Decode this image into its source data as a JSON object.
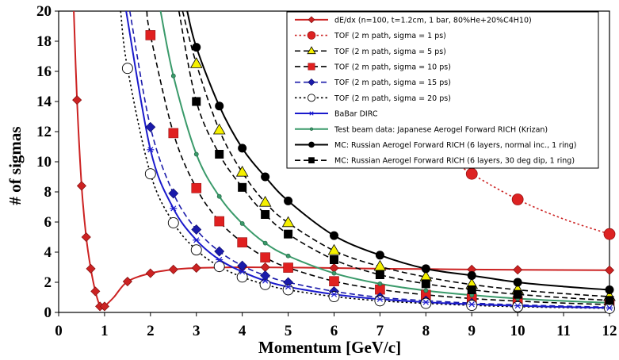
{
  "chart_data": {
    "type": "line",
    "xlabel": "Momentum [GeV/c]",
    "ylabel": "# of sigmas",
    "xlim": [
      0,
      12
    ],
    "ylim": [
      0,
      20
    ],
    "x_ticks": [
      "0",
      "1",
      "2",
      "3",
      "4",
      "5",
      "6",
      "7",
      "8",
      "9",
      "10",
      "11",
      "12"
    ],
    "y_ticks": [
      "0",
      "2",
      "4",
      "6",
      "8",
      "10",
      "12",
      "14",
      "16",
      "18",
      "20"
    ],
    "grid": true,
    "legend_position": "top-right",
    "series": [
      {
        "name": "dE/dx (n=100, t=1.2cm, 1 bar, 80%He+20%C4H10)",
        "color": "#cc2222",
        "line": "solid",
        "marker": "diamond-filled",
        "points": [
          [
            0.4,
            14.1
          ],
          [
            0.5,
            8.4
          ],
          [
            0.6,
            5.0
          ],
          [
            0.7,
            2.9
          ],
          [
            0.8,
            1.4
          ],
          [
            0.9,
            0.4
          ],
          [
            1.0,
            0.4
          ],
          [
            1.5,
            2.05
          ],
          [
            2.0,
            2.6
          ],
          [
            2.5,
            2.85
          ],
          [
            3.0,
            2.95
          ],
          [
            3.5,
            2.98
          ],
          [
            4.0,
            3.0
          ],
          [
            4.5,
            3.0
          ],
          [
            5.0,
            2.98
          ],
          [
            6.0,
            2.95
          ],
          [
            7.0,
            2.9
          ],
          [
            8.0,
            2.88
          ],
          [
            9.0,
            2.85
          ],
          [
            10.0,
            2.83
          ],
          [
            12.0,
            2.8
          ]
        ],
        "curve": [
          [
            0.33,
            20
          ],
          [
            0.4,
            14.1
          ],
          [
            0.5,
            8.4
          ],
          [
            0.6,
            5.0
          ],
          [
            0.7,
            2.9
          ],
          [
            0.8,
            1.4
          ],
          [
            0.9,
            0.4
          ],
          [
            0.95,
            0.25
          ],
          [
            1.0,
            0.4
          ],
          [
            1.2,
            1.0
          ],
          [
            1.5,
            2.05
          ],
          [
            2.0,
            2.6
          ],
          [
            2.5,
            2.85
          ],
          [
            3.0,
            2.95
          ],
          [
            3.5,
            2.98
          ],
          [
            4.0,
            3.0
          ],
          [
            5.0,
            2.98
          ],
          [
            6.0,
            2.95
          ],
          [
            7.0,
            2.9
          ],
          [
            8.0,
            2.88
          ],
          [
            9.0,
            2.85
          ],
          [
            10.0,
            2.83
          ],
          [
            12.0,
            2.8
          ]
        ]
      },
      {
        "name": "TOF (2 m path, sigma = 1 ps)",
        "color": "#cc2222",
        "line": "dotted",
        "marker": "circle-filled",
        "points": [
          [
            9.0,
            9.2
          ],
          [
            10.0,
            7.5
          ],
          [
            12.0,
            5.2
          ]
        ],
        "curve": [
          [
            8.45,
            10.4
          ],
          [
            9.0,
            9.2
          ],
          [
            10.0,
            7.5
          ],
          [
            11.0,
            6.2
          ],
          [
            12.0,
            5.2
          ]
        ]
      },
      {
        "name": "TOF (2 m path, sigma = 5 ps)",
        "color": "#000000",
        "line": "dashed",
        "marker": "triangle-yellow",
        "points": [
          [
            3.0,
            16.5
          ],
          [
            3.5,
            12.1
          ],
          [
            4.0,
            9.3
          ],
          [
            4.5,
            7.3
          ],
          [
            5.0,
            5.95
          ],
          [
            6.0,
            4.1
          ],
          [
            7.0,
            3.05
          ],
          [
            8.0,
            2.35
          ],
          [
            9.0,
            1.85
          ],
          [
            10.0,
            1.5
          ],
          [
            12.0,
            1.05
          ]
        ],
        "curve": [
          [
            2.7,
            20
          ],
          [
            3.0,
            16.5
          ],
          [
            3.5,
            12.1
          ],
          [
            4.0,
            9.3
          ],
          [
            4.5,
            7.3
          ],
          [
            5.0,
            5.95
          ],
          [
            6.0,
            4.1
          ],
          [
            7.0,
            3.05
          ],
          [
            8.0,
            2.35
          ],
          [
            9.0,
            1.85
          ],
          [
            10.0,
            1.5
          ],
          [
            11.0,
            1.25
          ],
          [
            12.0,
            1.05
          ]
        ]
      },
      {
        "name": "TOF (2 m path, sigma = 10 ps)",
        "color": "#000000",
        "line": "dashed",
        "marker": "square-red",
        "points": [
          [
            2.0,
            18.4
          ],
          [
            2.5,
            11.9
          ],
          [
            3.0,
            8.25
          ],
          [
            3.5,
            6.05
          ],
          [
            4.0,
            4.65
          ],
          [
            4.5,
            3.65
          ],
          [
            5.0,
            2.97
          ],
          [
            6.0,
            2.07
          ],
          [
            7.0,
            1.52
          ],
          [
            8.0,
            1.17
          ],
          [
            9.0,
            0.92
          ],
          [
            10.0,
            0.75
          ],
          [
            12.0,
            0.52
          ]
        ],
        "curve": [
          [
            1.92,
            20
          ],
          [
            2.0,
            18.4
          ],
          [
            2.5,
            11.9
          ],
          [
            3.0,
            8.25
          ],
          [
            3.5,
            6.05
          ],
          [
            4.0,
            4.65
          ],
          [
            4.5,
            3.65
          ],
          [
            5.0,
            2.97
          ],
          [
            6.0,
            2.07
          ],
          [
            7.0,
            1.52
          ],
          [
            8.0,
            1.17
          ],
          [
            9.0,
            0.92
          ],
          [
            10.0,
            0.75
          ],
          [
            11.0,
            0.62
          ],
          [
            12.0,
            0.52
          ]
        ]
      },
      {
        "name": "TOF (2 m path, sigma = 15 ps)",
        "color": "#1a1aaa",
        "line": "dashed",
        "marker": "diamond-blue",
        "points": [
          [
            2.0,
            12.3
          ],
          [
            2.5,
            7.9
          ],
          [
            3.0,
            5.5
          ],
          [
            3.5,
            4.05
          ],
          [
            4.0,
            3.1
          ],
          [
            4.5,
            2.45
          ],
          [
            5.0,
            2.0
          ],
          [
            6.0,
            1.4
          ],
          [
            7.0,
            1.0
          ],
          [
            8.0,
            0.78
          ],
          [
            9.0,
            0.62
          ],
          [
            10.0,
            0.5
          ],
          [
            12.0,
            0.35
          ]
        ],
        "curve": [
          [
            1.55,
            20
          ],
          [
            2.0,
            12.3
          ],
          [
            2.5,
            7.9
          ],
          [
            3.0,
            5.5
          ],
          [
            3.5,
            4.05
          ],
          [
            4.0,
            3.1
          ],
          [
            4.5,
            2.45
          ],
          [
            5.0,
            2.0
          ],
          [
            6.0,
            1.4
          ],
          [
            7.0,
            1.0
          ],
          [
            8.0,
            0.78
          ],
          [
            9.0,
            0.62
          ],
          [
            10.0,
            0.5
          ],
          [
            11.0,
            0.42
          ],
          [
            12.0,
            0.35
          ]
        ]
      },
      {
        "name": "TOF (2 m path, sigma = 20 ps)",
        "color": "#000000",
        "line": "dotted",
        "marker": "circle-open",
        "points": [
          [
            1.5,
            16.2
          ],
          [
            2.0,
            9.2
          ],
          [
            2.5,
            5.95
          ],
          [
            3.0,
            4.15
          ],
          [
            3.5,
            3.05
          ],
          [
            4.0,
            2.35
          ],
          [
            4.5,
            1.85
          ],
          [
            5.0,
            1.5
          ],
          [
            6.0,
            1.05
          ],
          [
            7.0,
            0.77
          ],
          [
            8.0,
            0.6
          ],
          [
            9.0,
            0.47
          ],
          [
            10.0,
            0.38
          ],
          [
            12.0,
            0.27
          ]
        ],
        "curve": [
          [
            1.35,
            20
          ],
          [
            1.5,
            16.2
          ],
          [
            2.0,
            9.2
          ],
          [
            2.5,
            5.95
          ],
          [
            3.0,
            4.15
          ],
          [
            3.5,
            3.05
          ],
          [
            4.0,
            2.35
          ],
          [
            4.5,
            1.85
          ],
          [
            5.0,
            1.5
          ],
          [
            6.0,
            1.05
          ],
          [
            7.0,
            0.77
          ],
          [
            8.0,
            0.6
          ],
          [
            9.0,
            0.47
          ],
          [
            10.0,
            0.38
          ],
          [
            11.0,
            0.32
          ],
          [
            12.0,
            0.27
          ]
        ]
      },
      {
        "name": "BaBar DIRC",
        "color": "#1a1acc",
        "line": "solid",
        "marker": "asterisk",
        "points": [
          [
            2.0,
            10.8
          ],
          [
            2.5,
            6.9
          ],
          [
            3.0,
            4.8
          ],
          [
            3.5,
            3.5
          ],
          [
            4.0,
            2.7
          ],
          [
            4.5,
            2.1
          ],
          [
            5.0,
            1.7
          ],
          [
            6.0,
            1.2
          ],
          [
            7.0,
            0.88
          ],
          [
            8.0,
            0.68
          ],
          [
            9.0,
            0.54
          ],
          [
            10.0,
            0.44
          ],
          [
            12.0,
            0.3
          ]
        ],
        "curve": [
          [
            1.47,
            20
          ],
          [
            2.0,
            10.8
          ],
          [
            2.5,
            6.9
          ],
          [
            3.0,
            4.8
          ],
          [
            3.5,
            3.5
          ],
          [
            4.0,
            2.7
          ],
          [
            4.5,
            2.1
          ],
          [
            5.0,
            1.7
          ],
          [
            6.0,
            1.2
          ],
          [
            7.0,
            0.88
          ],
          [
            8.0,
            0.68
          ],
          [
            9.0,
            0.54
          ],
          [
            10.0,
            0.44
          ],
          [
            11.0,
            0.36
          ],
          [
            12.0,
            0.3
          ]
        ]
      },
      {
        "name": "Test beam data: Japanese Aerogel Forward RICH (Krizan)",
        "color": "#3a9a6a",
        "line": "solid",
        "marker": "dot-green",
        "points": [
          [
            2.5,
            15.7
          ],
          [
            3.0,
            10.5
          ],
          [
            3.5,
            7.7
          ],
          [
            4.0,
            5.9
          ],
          [
            4.5,
            4.6
          ],
          [
            5.0,
            3.75
          ],
          [
            6.0,
            2.6
          ],
          [
            7.0,
            1.9
          ],
          [
            8.0,
            1.45
          ],
          [
            9.0,
            1.15
          ],
          [
            10.0,
            0.92
          ],
          [
            12.0,
            0.64
          ]
        ],
        "curve": [
          [
            2.22,
            20
          ],
          [
            2.5,
            15.7
          ],
          [
            3.0,
            10.5
          ],
          [
            3.5,
            7.7
          ],
          [
            4.0,
            5.9
          ],
          [
            4.5,
            4.6
          ],
          [
            5.0,
            3.75
          ],
          [
            6.0,
            2.6
          ],
          [
            7.0,
            1.9
          ],
          [
            8.0,
            1.45
          ],
          [
            9.0,
            1.15
          ],
          [
            10.0,
            0.92
          ],
          [
            11.0,
            0.76
          ],
          [
            12.0,
            0.64
          ]
        ]
      },
      {
        "name": "MC: Russian Aerogel Forward RICH (6 layers, normal inc., 1 ring)",
        "color": "#000000",
        "line": "solid",
        "marker": "circle-black",
        "points": [
          [
            3.0,
            17.6
          ],
          [
            3.5,
            13.7
          ],
          [
            4.0,
            10.9
          ],
          [
            4.5,
            9.0
          ],
          [
            5.0,
            7.4
          ],
          [
            6.0,
            5.1
          ],
          [
            7.0,
            3.8
          ],
          [
            8.0,
            2.9
          ],
          [
            9.0,
            2.45
          ],
          [
            10.0,
            2.0
          ],
          [
            12.0,
            1.5
          ]
        ],
        "curve": [
          [
            2.8,
            20
          ],
          [
            3.0,
            17.6
          ],
          [
            3.5,
            13.7
          ],
          [
            4.0,
            10.9
          ],
          [
            4.5,
            9.0
          ],
          [
            5.0,
            7.4
          ],
          [
            6.0,
            5.1
          ],
          [
            7.0,
            3.8
          ],
          [
            8.0,
            2.9
          ],
          [
            9.0,
            2.45
          ],
          [
            10.0,
            2.0
          ],
          [
            11.0,
            1.72
          ],
          [
            12.0,
            1.5
          ]
        ]
      },
      {
        "name": "MC: Russian Aerogel Forward RICH (6 layers, 30 deg dip, 1 ring)",
        "color": "#000000",
        "line": "dashed",
        "marker": "square-black",
        "points": [
          [
            3.0,
            14.0
          ],
          [
            3.5,
            10.5
          ],
          [
            4.0,
            8.3
          ],
          [
            4.5,
            6.5
          ],
          [
            5.0,
            5.2
          ],
          [
            6.0,
            3.5
          ],
          [
            7.0,
            2.5
          ],
          [
            8.0,
            1.9
          ],
          [
            9.0,
            1.5
          ],
          [
            10.0,
            1.2
          ],
          [
            12.0,
            0.8
          ]
        ],
        "curve": [
          [
            2.62,
            20
          ],
          [
            3.0,
            14.0
          ],
          [
            3.5,
            10.5
          ],
          [
            4.0,
            8.3
          ],
          [
            4.5,
            6.5
          ],
          [
            5.0,
            5.2
          ],
          [
            6.0,
            3.5
          ],
          [
            7.0,
            2.5
          ],
          [
            8.0,
            1.9
          ],
          [
            9.0,
            1.5
          ],
          [
            10.0,
            1.2
          ],
          [
            11.0,
            0.98
          ],
          [
            12.0,
            0.8
          ]
        ]
      }
    ]
  }
}
